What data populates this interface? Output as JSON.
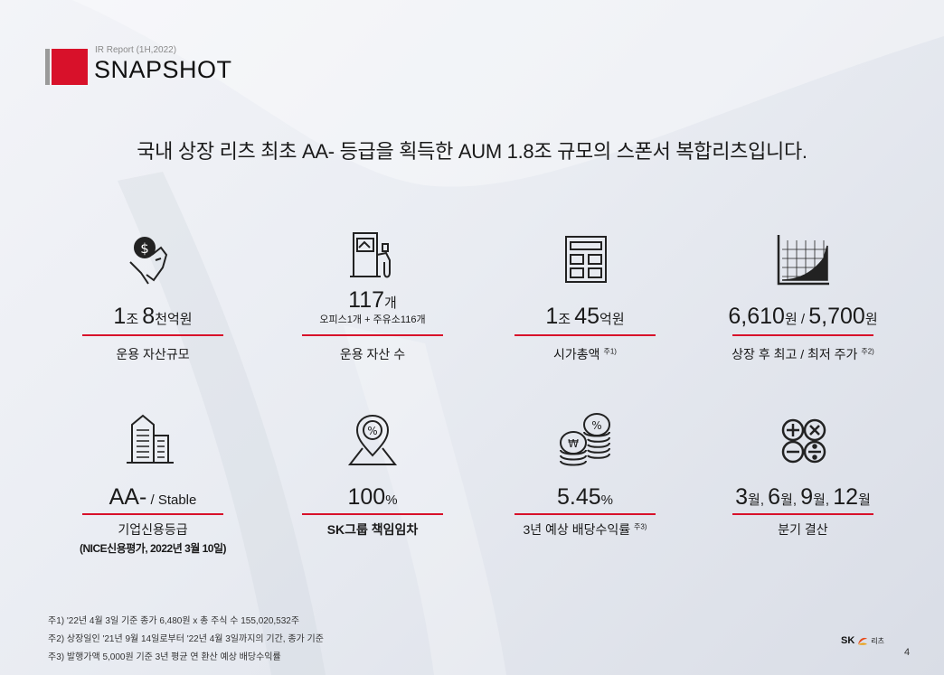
{
  "header": {
    "subtitle": "IR Report (1H,2022)",
    "title": "SNAPSHOT"
  },
  "headline": "국내 상장 리츠 최초 AA- 등급을 획득한 AUM 1.8조 규모의 스폰서 복합리츠입니다.",
  "stats": [
    {
      "icon": "money-hand-icon",
      "value_big1": "1",
      "value_small1": "조 ",
      "value_big2": "8",
      "value_small2": "천억원",
      "label": "운용 자산규모"
    },
    {
      "icon": "gas-station-icon",
      "value_big1": "117",
      "value_small1": "개",
      "value_note": "오피스1개 + 주유소116개",
      "label": "운용 자산 수"
    },
    {
      "icon": "calculator-icon",
      "value_big1": "1",
      "value_small1": "조 ",
      "value_big2": "45",
      "value_small2": "억원",
      "label": "시가총액",
      "label_sup": "주1)"
    },
    {
      "icon": "rising-chart-icon",
      "value_big1": "6,610",
      "value_small1": "원 / ",
      "value_big2": "5,700",
      "value_small2": "원",
      "label": "상장 후 최고 / 최저 주가",
      "label_sup": "주2)"
    },
    {
      "icon": "buildings-icon",
      "value_big1": "AA-",
      "value_small1": " / Stable",
      "label": "기업신용등급",
      "label_note": "(NICE신용평가, 2022년 3월 10일)"
    },
    {
      "icon": "percent-pin-icon",
      "value_big1": "100",
      "value_small1": "%",
      "label": "SK그룹 책임임차"
    },
    {
      "icon": "coins-icon",
      "value_big1": "5.45",
      "value_small1": "%",
      "label": "3년 예상 배당수익률",
      "label_sup": "주3)"
    },
    {
      "icon": "math-symbols-icon",
      "value_big1": "3",
      "value_small1": "월, ",
      "value_big2": "6",
      "value_small2": "월, ",
      "value_big3": "9",
      "value_small3": "월, ",
      "value_big4": "12",
      "value_small4": "월",
      "label": "분기 결산"
    }
  ],
  "footnotes": [
    "주1) '22년 4월 3일 기준  종가 6,480원 x 총 주식 수 155,020,532주",
    "주2)  상장일인 '21년 9월 14일로부터 '22년 4월 3일까지의 기간, 종가 기준",
    "주3) 발행가액 5,000원 기준 3년 평균 연 환산 예상 배당수익률"
  ],
  "logo": {
    "brand": "SK",
    "sub": "리츠"
  },
  "page_number": "4",
  "colors": {
    "accent": "#d8112a",
    "gray_bar": "#9a9a9a"
  }
}
